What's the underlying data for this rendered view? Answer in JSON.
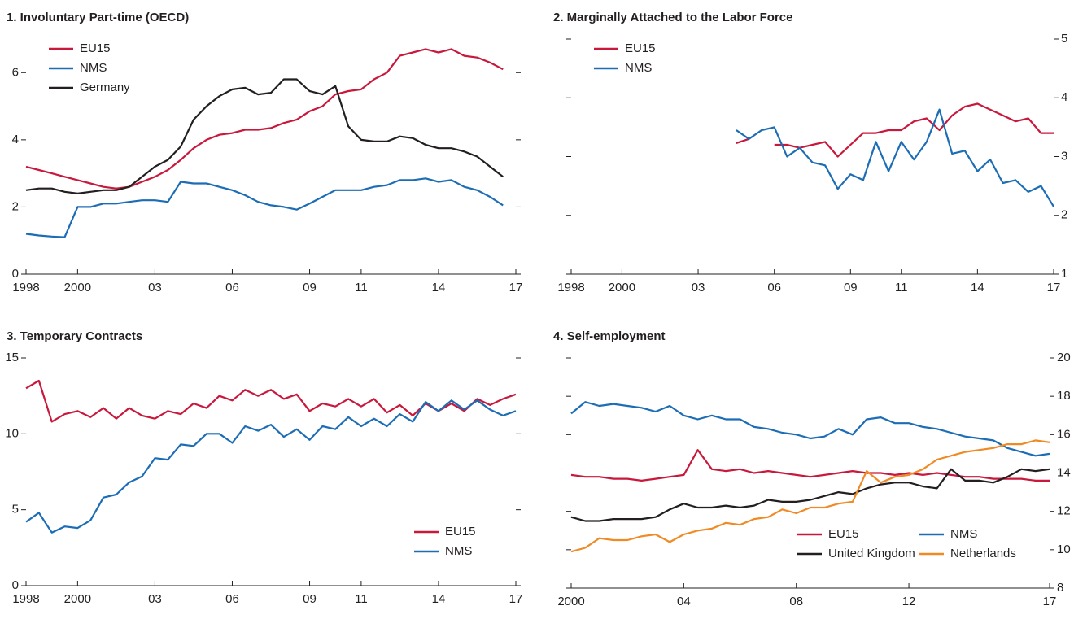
{
  "chart_data": [
    {
      "type": "line",
      "title": "1. Involuntary Part-time (OECD)",
      "x": [
        1998,
        1998.5,
        1999,
        1999.5,
        2000,
        2000.5,
        2001,
        2001.5,
        2002,
        2002.5,
        2003,
        2003.5,
        2004,
        2004.5,
        2005,
        2005.5,
        2006,
        2006.5,
        2007,
        2007.5,
        2008,
        2008.5,
        2009,
        2009.5,
        2010,
        2010.5,
        2011,
        2011.5,
        2012,
        2012.5,
        2013,
        2013.5,
        2014,
        2014.5,
        2015,
        2015.5,
        2016,
        2016.5
      ],
      "xlim": [
        1998,
        2017
      ],
      "xticks": [
        1998,
        2000,
        {
          "value": 2003,
          "label": "03"
        },
        {
          "value": 2006,
          "label": "06"
        },
        {
          "value": 2009,
          "label": "09"
        },
        {
          "value": 2011,
          "label": "11"
        },
        {
          "value": 2014,
          "label": "14"
        },
        {
          "value": 2017,
          "label": "17"
        }
      ],
      "ylim": [
        0,
        7
      ],
      "yticks": [
        0,
        2,
        4,
        6
      ],
      "ytick_side": "left",
      "legend": "upper left",
      "legend_columns": 1,
      "series": [
        {
          "name": "EU15",
          "color": "#c8193c",
          "values": [
            3.2,
            3.1,
            3.0,
            2.9,
            2.8,
            2.7,
            2.6,
            2.55,
            2.6,
            2.75,
            2.9,
            3.1,
            3.4,
            3.75,
            4.0,
            4.15,
            4.2,
            4.3,
            4.3,
            4.35,
            4.5,
            4.6,
            4.85,
            5.0,
            5.35,
            5.45,
            5.5,
            5.8,
            6.0,
            6.5,
            6.6,
            6.7,
            6.6,
            6.7,
            6.5,
            6.45,
            6.3,
            6.1
          ]
        },
        {
          "name": "NMS",
          "color": "#1c6db5",
          "values": [
            1.2,
            1.15,
            1.12,
            1.1,
            2.0,
            2.0,
            2.1,
            2.1,
            2.15,
            2.2,
            2.2,
            2.15,
            2.75,
            2.7,
            2.7,
            2.6,
            2.5,
            2.35,
            2.15,
            2.05,
            2.0,
            1.92,
            2.1,
            2.3,
            2.5,
            2.5,
            2.5,
            2.6,
            2.65,
            2.8,
            2.8,
            2.85,
            2.75,
            2.8,
            2.6,
            2.5,
            2.3,
            2.05
          ]
        },
        {
          "name": "Germany",
          "color": "#231f20",
          "values": [
            2.5,
            2.55,
            2.55,
            2.45,
            2.4,
            2.45,
            2.5,
            2.5,
            2.6,
            2.9,
            3.2,
            3.4,
            3.8,
            4.6,
            5.0,
            5.3,
            5.5,
            5.55,
            5.35,
            5.4,
            5.8,
            5.8,
            5.45,
            5.35,
            5.6,
            4.4,
            4.0,
            3.95,
            3.95,
            4.1,
            4.05,
            3.85,
            3.75,
            3.75,
            3.65,
            3.5,
            3.2,
            2.9
          ]
        }
      ]
    },
    {
      "type": "line",
      "title": "2. Marginally Attached to the Labor Force",
      "x": [
        2004.5,
        2005,
        2005.5,
        2006,
        2006.5,
        2007,
        2007.5,
        2008,
        2008.5,
        2009,
        2009.5,
        2010,
        2010.5,
        2011,
        2011.5,
        2012,
        2012.5,
        2013,
        2013.5,
        2014,
        2014.5,
        2015,
        2015.5,
        2016,
        2016.5,
        2017
      ],
      "xlim": [
        1998,
        2017
      ],
      "xticks": [
        1998,
        2000,
        {
          "value": 2003,
          "label": "03"
        },
        {
          "value": 2006,
          "label": "06"
        },
        {
          "value": 2009,
          "label": "09"
        },
        {
          "value": 2011,
          "label": "11"
        },
        {
          "value": 2014,
          "label": "14"
        },
        {
          "value": 2017,
          "label": "17"
        }
      ],
      "ylim": [
        1,
        5
      ],
      "yticks": [
        1,
        2,
        3,
        4,
        5
      ],
      "ytick_side": "right",
      "legend": "upper left",
      "legend_columns": 1,
      "series": [
        {
          "name": "EU15",
          "color": "#c8193c",
          "values": [
            3.23,
            3.3,
            null,
            3.2,
            3.2,
            3.15,
            3.2,
            3.25,
            3.0,
            3.2,
            3.4,
            3.4,
            3.45,
            3.45,
            3.6,
            3.65,
            3.45,
            3.7,
            3.85,
            3.9,
            3.8,
            3.7,
            3.6,
            3.65,
            3.4,
            3.4
          ]
        },
        {
          "name": "NMS",
          "color": "#1c6db5",
          "values": [
            3.45,
            3.3,
            3.45,
            3.5,
            3.0,
            3.15,
            2.9,
            2.85,
            2.45,
            2.7,
            2.6,
            3.25,
            2.75,
            3.25,
            2.95,
            3.25,
            3.8,
            3.05,
            3.1,
            2.75,
            2.95,
            2.55,
            2.6,
            2.4,
            2.5,
            2.15
          ]
        }
      ]
    },
    {
      "type": "line",
      "title": "3. Temporary Contracts",
      "x": [
        1998,
        1998.5,
        1999,
        1999.5,
        2000,
        2000.5,
        2001,
        2001.5,
        2002,
        2002.5,
        2003,
        2003.5,
        2004,
        2004.5,
        2005,
        2005.5,
        2006,
        2006.5,
        2007,
        2007.5,
        2008,
        2008.5,
        2009,
        2009.5,
        2010,
        2010.5,
        2011,
        2011.5,
        2012,
        2012.5,
        2013,
        2013.5,
        2014,
        2014.5,
        2015,
        2015.5,
        2016,
        2016.5,
        2017
      ],
      "xlim": [
        1998,
        2017
      ],
      "xticks": [
        1998,
        2000,
        {
          "value": 2003,
          "label": "03"
        },
        {
          "value": 2006,
          "label": "06"
        },
        {
          "value": 2009,
          "label": "09"
        },
        {
          "value": 2011,
          "label": "11"
        },
        {
          "value": 2014,
          "label": "14"
        },
        {
          "value": 2017,
          "label": "17"
        }
      ],
      "ylim": [
        0,
        15
      ],
      "yticks": [
        0,
        5,
        10,
        15
      ],
      "ytick_side": "left",
      "legend": "lower right",
      "legend_columns": 1,
      "series": [
        {
          "name": "EU15",
          "color": "#c8193c",
          "values": [
            13.0,
            13.5,
            10.8,
            11.3,
            11.5,
            11.1,
            11.7,
            11.0,
            11.7,
            11.2,
            11.0,
            11.5,
            11.3,
            12.0,
            11.7,
            12.5,
            12.2,
            12.9,
            12.5,
            12.9,
            12.3,
            12.6,
            11.5,
            12.0,
            11.8,
            12.3,
            11.8,
            12.3,
            11.4,
            11.9,
            11.2,
            12.0,
            11.5,
            12.0,
            11.5,
            12.3,
            11.9,
            12.3,
            12.6
          ]
        },
        {
          "name": "NMS",
          "color": "#1c6db5",
          "values": [
            4.2,
            4.8,
            3.5,
            3.9,
            3.8,
            4.3,
            5.8,
            6.0,
            6.8,
            7.2,
            8.4,
            8.3,
            9.3,
            9.2,
            10.0,
            10.0,
            9.4,
            10.5,
            10.2,
            10.6,
            9.8,
            10.3,
            9.6,
            10.5,
            10.3,
            11.1,
            10.5,
            11.0,
            10.5,
            11.3,
            10.8,
            12.1,
            11.5,
            12.2,
            11.6,
            12.2,
            11.6,
            11.2,
            11.5
          ]
        }
      ]
    },
    {
      "type": "line",
      "title": "4. Self-employment",
      "x": [
        2000,
        2000.5,
        2001,
        2001.5,
        2002,
        2002.5,
        2003,
        2003.5,
        2004,
        2004.5,
        2005,
        2005.5,
        2006,
        2006.5,
        2007,
        2007.5,
        2008,
        2008.5,
        2009,
        2009.5,
        2010,
        2010.5,
        2011,
        2011.5,
        2012,
        2012.5,
        2013,
        2013.5,
        2014,
        2014.5,
        2015,
        2015.5,
        2016,
        2016.5,
        2017
      ],
      "xlim": [
        2000,
        2017
      ],
      "xticks": [
        2000,
        {
          "value": 2004,
          "label": "04"
        },
        {
          "value": 2008,
          "label": "08"
        },
        {
          "value": 2012,
          "label": "12"
        },
        {
          "value": 2017,
          "label": "17"
        }
      ],
      "ylim": [
        8,
        20
      ],
      "yticks": [
        8,
        10,
        12,
        14,
        16,
        18,
        20
      ],
      "ytick_side": "right",
      "legend": "lower right",
      "legend_columns": 2,
      "series": [
        {
          "name": "EU15",
          "color": "#c8193c",
          "values": [
            13.9,
            13.8,
            13.8,
            13.7,
            13.7,
            13.6,
            13.7,
            13.8,
            13.9,
            15.2,
            14.2,
            14.1,
            14.2,
            14.0,
            14.1,
            14.0,
            13.9,
            13.8,
            13.9,
            14.0,
            14.1,
            14.0,
            14.0,
            13.9,
            14.0,
            13.9,
            14.0,
            13.9,
            13.8,
            13.8,
            13.7,
            13.7,
            13.7,
            13.6,
            13.6
          ]
        },
        {
          "name": "NMS",
          "color": "#1c6db5",
          "values": [
            17.1,
            17.7,
            17.5,
            17.6,
            17.5,
            17.4,
            17.2,
            17.5,
            17.0,
            16.8,
            17.0,
            16.8,
            16.8,
            16.4,
            16.3,
            16.1,
            16.0,
            15.8,
            15.9,
            16.3,
            16.0,
            16.8,
            16.9,
            16.6,
            16.6,
            16.4,
            16.3,
            16.1,
            15.9,
            15.8,
            15.7,
            15.3,
            15.1,
            14.9,
            15.0
          ]
        },
        {
          "name": "United Kingdom",
          "color": "#231f20",
          "values": [
            11.7,
            11.5,
            11.5,
            11.6,
            11.6,
            11.6,
            11.7,
            12.1,
            12.4,
            12.2,
            12.2,
            12.3,
            12.2,
            12.3,
            12.6,
            12.5,
            12.5,
            12.6,
            12.8,
            13.0,
            12.9,
            13.2,
            13.4,
            13.5,
            13.5,
            13.3,
            13.2,
            14.2,
            13.6,
            13.6,
            13.5,
            13.8,
            14.2,
            14.1,
            14.2
          ]
        },
        {
          "name": "Netherlands",
          "color": "#f08a24",
          "values": [
            9.9,
            10.1,
            10.6,
            10.5,
            10.5,
            10.7,
            10.8,
            10.4,
            10.8,
            11.0,
            11.1,
            11.4,
            11.3,
            11.6,
            11.7,
            12.1,
            11.9,
            12.2,
            12.2,
            12.4,
            12.5,
            14.1,
            13.5,
            13.8,
            13.9,
            14.2,
            14.7,
            14.9,
            15.1,
            15.2,
            15.3,
            15.5,
            15.5,
            15.7,
            15.6
          ]
        }
      ]
    }
  ]
}
